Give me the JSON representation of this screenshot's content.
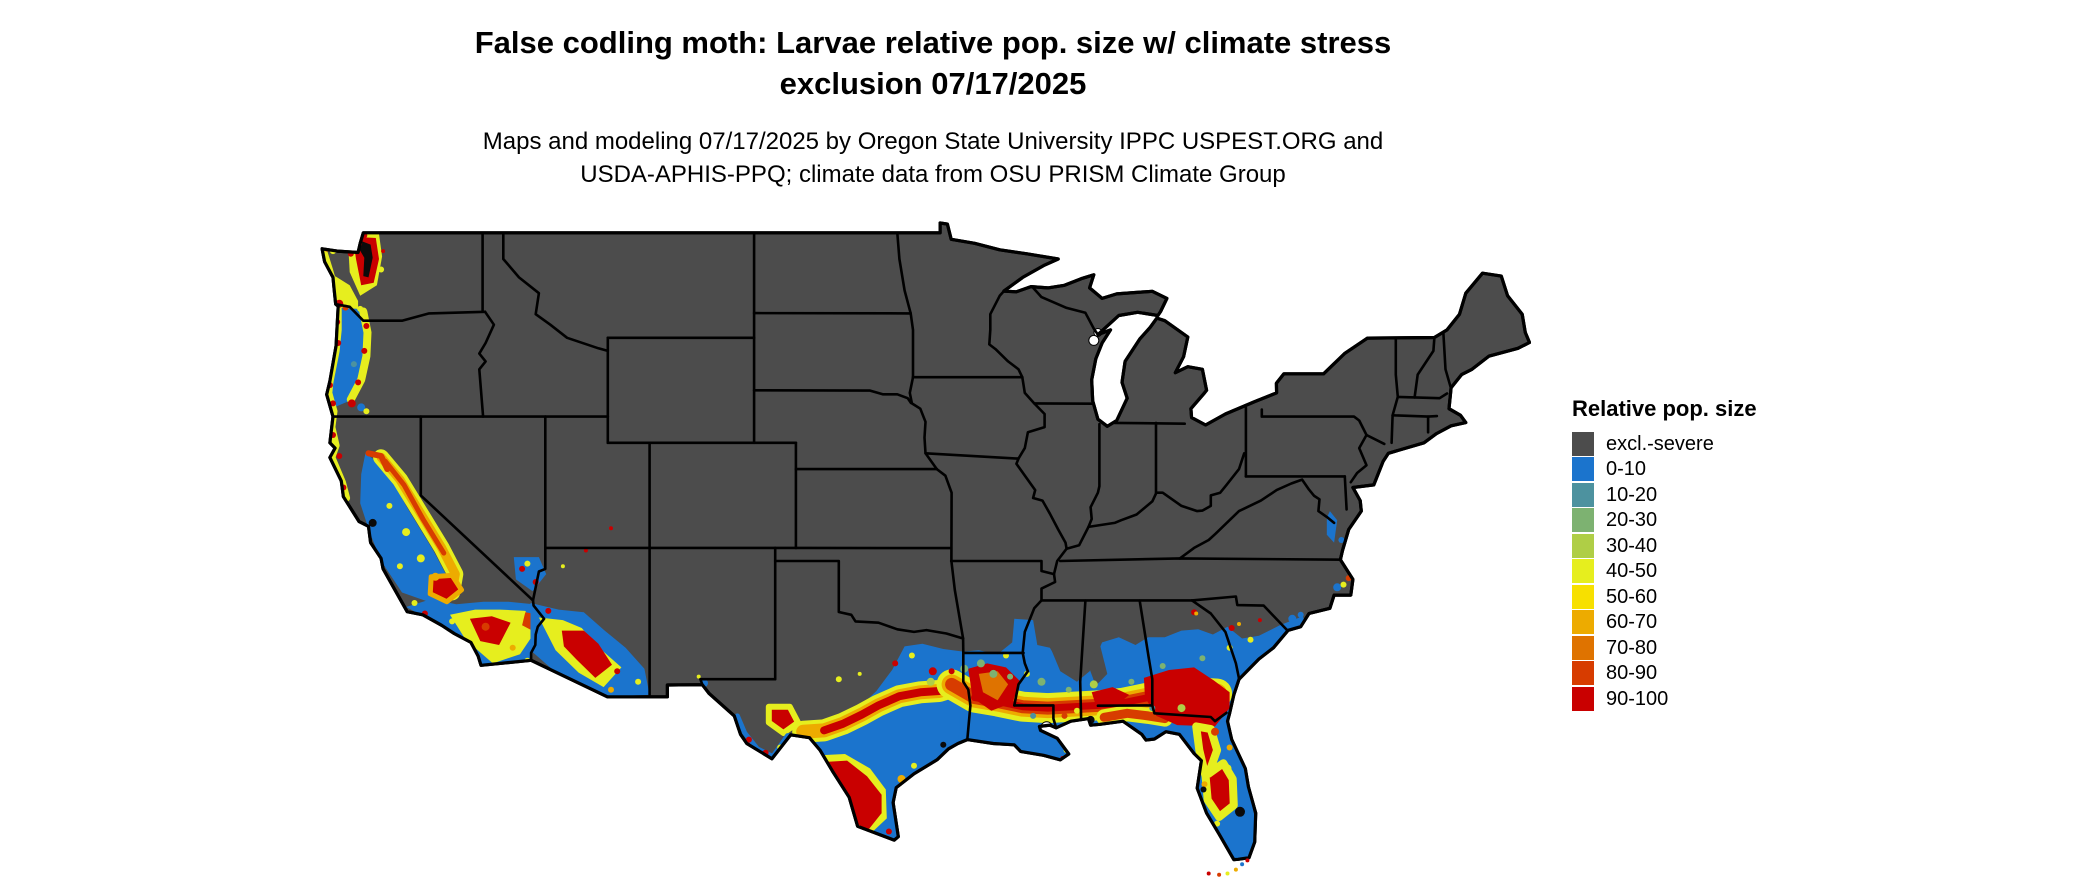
{
  "header": {
    "title_lines": [
      "False codling moth: Larvae relative pop. size w/ climate stress",
      "exclusion 07/17/2025"
    ],
    "subtitle_lines": [
      "Maps and modeling 07/17/2025 by Oregon State University IPPC USPEST.ORG and",
      "USDA-APHIS-PPQ; climate data from OSU PRISM Climate Group"
    ]
  },
  "legend": {
    "title": "Relative pop. size",
    "items": [
      {
        "label": "excl.-severe",
        "color": "#4C4C4C"
      },
      {
        "label": "0-10",
        "color": "#1B74CD"
      },
      {
        "label": "10-20",
        "color": "#4D929F"
      },
      {
        "label": "20-30",
        "color": "#7DB271"
      },
      {
        "label": "30-40",
        "color": "#AFCE46"
      },
      {
        "label": "40-50",
        "color": "#E6EE1E"
      },
      {
        "label": "50-60",
        "color": "#F7E000"
      },
      {
        "label": "60-70",
        "color": "#EDAB00"
      },
      {
        "label": "70-80",
        "color": "#DF7300"
      },
      {
        "label": "80-90",
        "color": "#D73C00"
      },
      {
        "label": "90-100",
        "color": "#C90000"
      }
    ]
  },
  "map": {
    "excluded_fill": "#4C4C4C",
    "state_border_color": "#000000",
    "water_background": "#FFFFFF"
  }
}
